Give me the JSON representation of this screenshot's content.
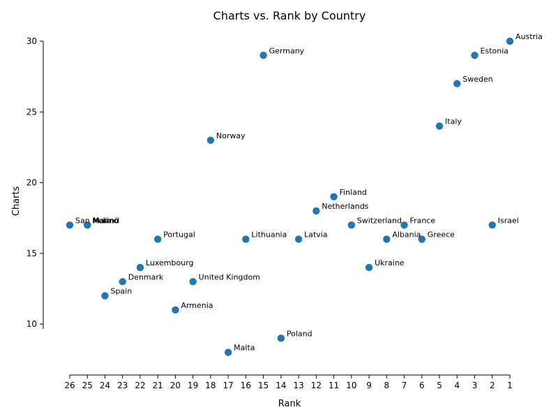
{
  "chart_data": {
    "type": "scatter",
    "title": "Charts vs. Rank by Country",
    "xlabel": "Rank",
    "ylabel": "Charts",
    "x_ticks": [
      26,
      25,
      24,
      23,
      22,
      21,
      20,
      19,
      18,
      17,
      16,
      15,
      14,
      13,
      12,
      11,
      10,
      9,
      8,
      7,
      6,
      5,
      4,
      3,
      2,
      1
    ],
    "y_ticks": [
      10,
      15,
      20,
      25,
      30
    ],
    "xlim": [
      26,
      1
    ],
    "ylim": [
      6.4,
      30
    ],
    "x_axis_reversed": true,
    "grid": false,
    "marker_color": "#1f77b4",
    "points": [
      {
        "label": "Austria",
        "rank": 1,
        "charts": 30
      },
      {
        "label": "Israel",
        "rank": 2,
        "charts": 17
      },
      {
        "label": "Estonia",
        "rank": 3,
        "charts": 29
      },
      {
        "label": "Sweden",
        "rank": 4,
        "charts": 27
      },
      {
        "label": "Italy",
        "rank": 5,
        "charts": 24
      },
      {
        "label": "Greece",
        "rank": 6,
        "charts": 16
      },
      {
        "label": "France",
        "rank": 7,
        "charts": 17
      },
      {
        "label": "Albania",
        "rank": 8,
        "charts": 16
      },
      {
        "label": "Ukraine",
        "rank": 9,
        "charts": 14
      },
      {
        "label": "Switzerland",
        "rank": 10,
        "charts": 17
      },
      {
        "label": "Finland",
        "rank": 11,
        "charts": 19
      },
      {
        "label": "Netherlands",
        "rank": 12,
        "charts": 18
      },
      {
        "label": "Latvia",
        "rank": 13,
        "charts": 16
      },
      {
        "label": "Poland",
        "rank": 14,
        "charts": 9
      },
      {
        "label": "Germany",
        "rank": 15,
        "charts": 29
      },
      {
        "label": "Lithuania",
        "rank": 16,
        "charts": 16
      },
      {
        "label": "Malta",
        "rank": 17,
        "charts": 8
      },
      {
        "label": "Norway",
        "rank": 18,
        "charts": 23
      },
      {
        "label": "United Kingdom",
        "rank": 19,
        "charts": 13
      },
      {
        "label": "Armenia",
        "rank": 20,
        "charts": 11
      },
      {
        "label": "Portugal",
        "rank": 21,
        "charts": 16
      },
      {
        "label": "Luxembourg",
        "rank": 22,
        "charts": 14
      },
      {
        "label": "Denmark",
        "rank": 23,
        "charts": 13
      },
      {
        "label": "Spain",
        "rank": 24,
        "charts": 12
      },
      {
        "label": "Ireland",
        "rank": 25,
        "charts": 17
      },
      {
        "label": "Malmö",
        "rank": 25,
        "charts": 17
      },
      {
        "label": "San Marino",
        "rank": 26,
        "charts": 17
      }
    ]
  }
}
